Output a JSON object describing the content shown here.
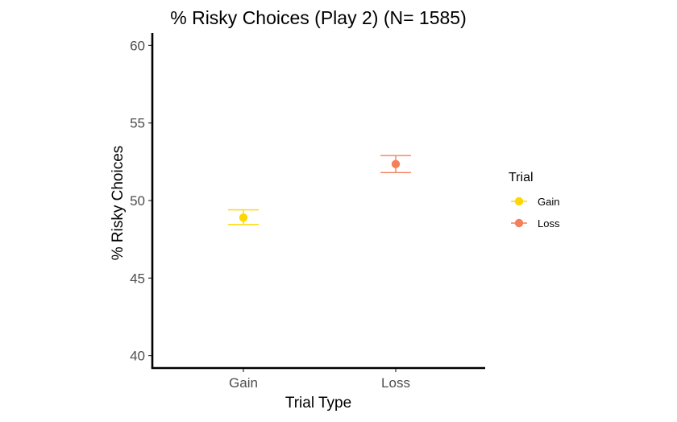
{
  "chart_data": {
    "type": "scatter",
    "title": "% Risky Choices (Play 2) (N= 1585)",
    "xlabel": "Trial Type",
    "ylabel": "% Risky Choices",
    "categories": [
      "Gain",
      "Loss"
    ],
    "series": [
      {
        "name": "Gain",
        "color": "#FFD700",
        "category": "Gain",
        "value": 48.9,
        "ci_low": 48.45,
        "ci_high": 49.4
      },
      {
        "name": "Loss",
        "color": "#F4805A",
        "category": "Loss",
        "value": 52.35,
        "ci_low": 51.8,
        "ci_high": 52.9
      }
    ],
    "ylim": [
      39.2,
      60.8
    ],
    "yticks": [
      40,
      45,
      50,
      55,
      60
    ],
    "grid": false,
    "legend": {
      "title": "Trial",
      "placement": "right"
    }
  }
}
